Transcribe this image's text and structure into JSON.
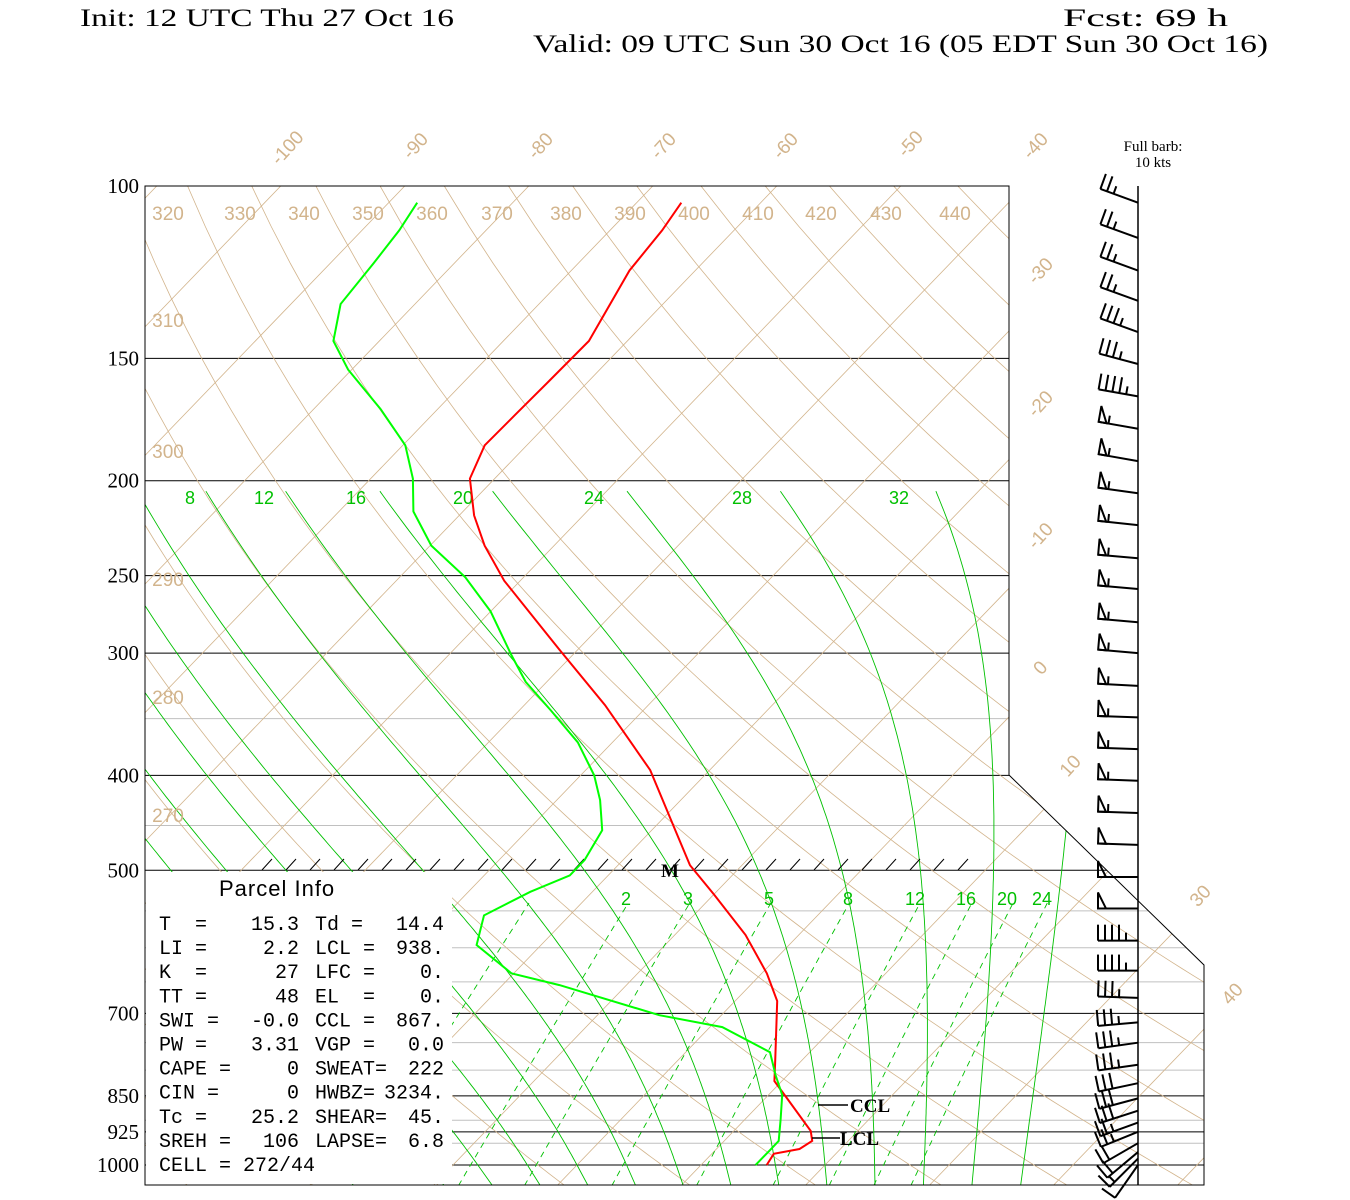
{
  "header": {
    "init": "Init: 12 UTC Thu 27 Oct 16",
    "fcst": "Fcst:   69 h",
    "valid": "Valid: 09 UTC Sun 30 Oct 16 (05 EDT Sun 30 Oct 16)"
  },
  "barb_legend": {
    "line1": "Full barb:",
    "line2": "10 kts"
  },
  "parcel_info": {
    "title": "Parcel Info",
    "rows": [
      {
        "l1": "T  =",
        "v1": "15.3",
        "l2": "Td =",
        "v2": "14.4"
      },
      {
        "l1": "LI =",
        "v1": "2.2",
        "l2": "LCL =",
        "v2": "938."
      },
      {
        "l1": "K  =",
        "v1": "27",
        "l2": "LFC =",
        "v2": "0."
      },
      {
        "l1": "TT =",
        "v1": "48",
        "l2": "EL  =",
        "v2": "0."
      },
      {
        "l1": "SWI =",
        "v1": "-0.0",
        "l2": "CCL =",
        "v2": "867."
      },
      {
        "l1": "PW =",
        "v1": "3.31",
        "l2": "VGP =",
        "v2": "0.0"
      },
      {
        "l1": "CAPE =",
        "v1": "0",
        "l2": "SWEAT=",
        "v2": "222"
      },
      {
        "l1": "CIN =",
        "v1": "0",
        "l2": "HWBZ=",
        "v2": "3234."
      },
      {
        "l1": "Tc =",
        "v1": "25.2",
        "l2": "SHEAR=",
        "v2": "45."
      },
      {
        "l1": "SREH =",
        "v1": "106",
        "l2": "LAPSE=",
        "v2": "6.8"
      }
    ],
    "cell": "CELL = 272/44"
  },
  "annotations": {
    "ccl": "CCL",
    "lcl": "LCL",
    "max_wind": "M"
  },
  "chart_data": {
    "type": "line",
    "subtype": "skew-T log-P sounding",
    "colors": {
      "temperature": "#ff0000",
      "dewpoint": "#00ff00",
      "isotherm": "#d2b48c",
      "dry_adiabat": "#d2b48c",
      "moist_adiabat": "#00c000",
      "mixing_ratio": "#00c000"
    },
    "pressure_ticks": [
      100,
      150,
      200,
      250,
      300,
      400,
      500,
      700,
      850,
      925,
      1000
    ],
    "minor_pressure_lines": [
      350,
      450,
      550,
      600,
      650,
      750,
      800,
      900,
      950
    ],
    "ylim_hPa": [
      1000,
      100
    ],
    "isotherm_labels": [
      -100,
      -90,
      -80,
      -70,
      -60,
      -50,
      -40,
      -30,
      -20,
      -10,
      0,
      10,
      30,
      40
    ],
    "dry_adiabat_labels_top": [
      320,
      330,
      340,
      350,
      360,
      370,
      380,
      390,
      400,
      410,
      420,
      430,
      440
    ],
    "dry_adiabat_labels_left": [
      310,
      300,
      290,
      280,
      270
    ],
    "moist_adiabat_labels": [
      8,
      12,
      16,
      20,
      24,
      28,
      32
    ],
    "mixing_ratio_labels": [
      2,
      3,
      5,
      8,
      12,
      16,
      20,
      24
    ],
    "ccl_hPa": 867,
    "lcl_hPa": 938,
    "max_wind_hPa": 500,
    "series": [
      {
        "name": "Temperature",
        "unit": "C",
        "points": [
          [
            104,
            -66.4
          ],
          [
            111,
            -65.8
          ],
          [
            122,
            -65.3
          ],
          [
            144,
            -63.1
          ],
          [
            158,
            -63.2
          ],
          [
            171,
            -63.3
          ],
          [
            184,
            -63.4
          ],
          [
            199,
            -62.0
          ],
          [
            217,
            -58.8
          ],
          [
            233,
            -55.6
          ],
          [
            253,
            -51.3
          ],
          [
            298,
            -41.4
          ],
          [
            339,
            -33.5
          ],
          [
            395,
            -24.8
          ],
          [
            455,
            -18.1
          ],
          [
            494,
            -14.2
          ],
          [
            530,
            -9.9
          ],
          [
            582,
            -4.3
          ],
          [
            637,
            0.4
          ],
          [
            680,
            3.4
          ],
          [
            783,
            7.9
          ],
          [
            821,
            9.4
          ],
          [
            860,
            12.1
          ],
          [
            923,
            16.2
          ],
          [
            945,
            17.1
          ],
          [
            963,
            16.7
          ],
          [
            974,
            15.0
          ],
          [
            1000,
            15.3
          ]
        ]
      },
      {
        "name": "Dewpoint",
        "unit": "C",
        "points": [
          [
            104,
            -87.7
          ],
          [
            111,
            -87.0
          ],
          [
            120,
            -86.5
          ],
          [
            132,
            -86.0
          ],
          [
            144,
            -83.7
          ],
          [
            154,
            -80.3
          ],
          [
            169,
            -74.6
          ],
          [
            184,
            -69.8
          ],
          [
            199,
            -66.6
          ],
          [
            215,
            -64.0
          ],
          [
            233,
            -59.9
          ],
          [
            251,
            -54.7
          ],
          [
            272,
            -50.0
          ],
          [
            301,
            -45.0
          ],
          [
            321,
            -41.7
          ],
          [
            343,
            -37.5
          ],
          [
            370,
            -32.8
          ],
          [
            400,
            -28.9
          ],
          [
            424,
            -26.5
          ],
          [
            455,
            -24.0
          ],
          [
            488,
            -23.1
          ],
          [
            506,
            -23.1
          ],
          [
            526,
            -25.0
          ],
          [
            556,
            -26.9
          ],
          [
            596,
            -25.2
          ],
          [
            637,
            -20.2
          ],
          [
            655,
            -15.4
          ],
          [
            703,
            -5.0
          ],
          [
            723,
            1.0
          ],
          [
            767,
            6.8
          ],
          [
            809,
            9.0
          ],
          [
            848,
            11.1
          ],
          [
            899,
            12.9
          ],
          [
            945,
            14.4
          ],
          [
            965,
            14.4
          ],
          [
            989,
            14.4
          ],
          [
            1000,
            14.4
          ]
        ]
      }
    ],
    "wind_barbs": [
      {
        "p": 104,
        "dir": 290,
        "spd": 25
      },
      {
        "p": 113,
        "dir": 290,
        "spd": 25
      },
      {
        "p": 122,
        "dir": 290,
        "spd": 25
      },
      {
        "p": 131,
        "dir": 290,
        "spd": 25
      },
      {
        "p": 141,
        "dir": 290,
        "spd": 35
      },
      {
        "p": 152,
        "dir": 285,
        "spd": 35
      },
      {
        "p": 164,
        "dir": 280,
        "spd": 45
      },
      {
        "p": 177,
        "dir": 280,
        "spd": 55
      },
      {
        "p": 191,
        "dir": 280,
        "spd": 55
      },
      {
        "p": 206,
        "dir": 278,
        "spd": 55
      },
      {
        "p": 222,
        "dir": 276,
        "spd": 55
      },
      {
        "p": 240,
        "dir": 275,
        "spd": 55
      },
      {
        "p": 258,
        "dir": 275,
        "spd": 55
      },
      {
        "p": 279,
        "dir": 275,
        "spd": 55
      },
      {
        "p": 300,
        "dir": 275,
        "spd": 55
      },
      {
        "p": 324,
        "dir": 273,
        "spd": 55
      },
      {
        "p": 349,
        "dir": 272,
        "spd": 55
      },
      {
        "p": 376,
        "dir": 272,
        "spd": 55
      },
      {
        "p": 405,
        "dir": 272,
        "spd": 55
      },
      {
        "p": 437,
        "dir": 272,
        "spd": 55
      },
      {
        "p": 471,
        "dir": 272,
        "spd": 50
      },
      {
        "p": 508,
        "dir": 270,
        "spd": 50
      },
      {
        "p": 547,
        "dir": 270,
        "spd": 50
      },
      {
        "p": 590,
        "dir": 270,
        "spd": 45
      },
      {
        "p": 633,
        "dir": 270,
        "spd": 45
      },
      {
        "p": 675,
        "dir": 272,
        "spd": 35
      },
      {
        "p": 715,
        "dir": 265,
        "spd": 35
      },
      {
        "p": 750,
        "dir": 262,
        "spd": 35
      },
      {
        "p": 790,
        "dir": 262,
        "spd": 35
      },
      {
        "p": 825,
        "dir": 258,
        "spd": 30
      },
      {
        "p": 855,
        "dir": 255,
        "spd": 30
      },
      {
        "p": 880,
        "dir": 252,
        "spd": 30
      },
      {
        "p": 905,
        "dir": 250,
        "spd": 25
      },
      {
        "p": 925,
        "dir": 248,
        "spd": 25
      },
      {
        "p": 950,
        "dir": 240,
        "spd": 20
      },
      {
        "p": 970,
        "dir": 230,
        "spd": 20
      },
      {
        "p": 985,
        "dir": 225,
        "spd": 15
      },
      {
        "p": 1000,
        "dir": 215,
        "spd": 10
      }
    ]
  }
}
